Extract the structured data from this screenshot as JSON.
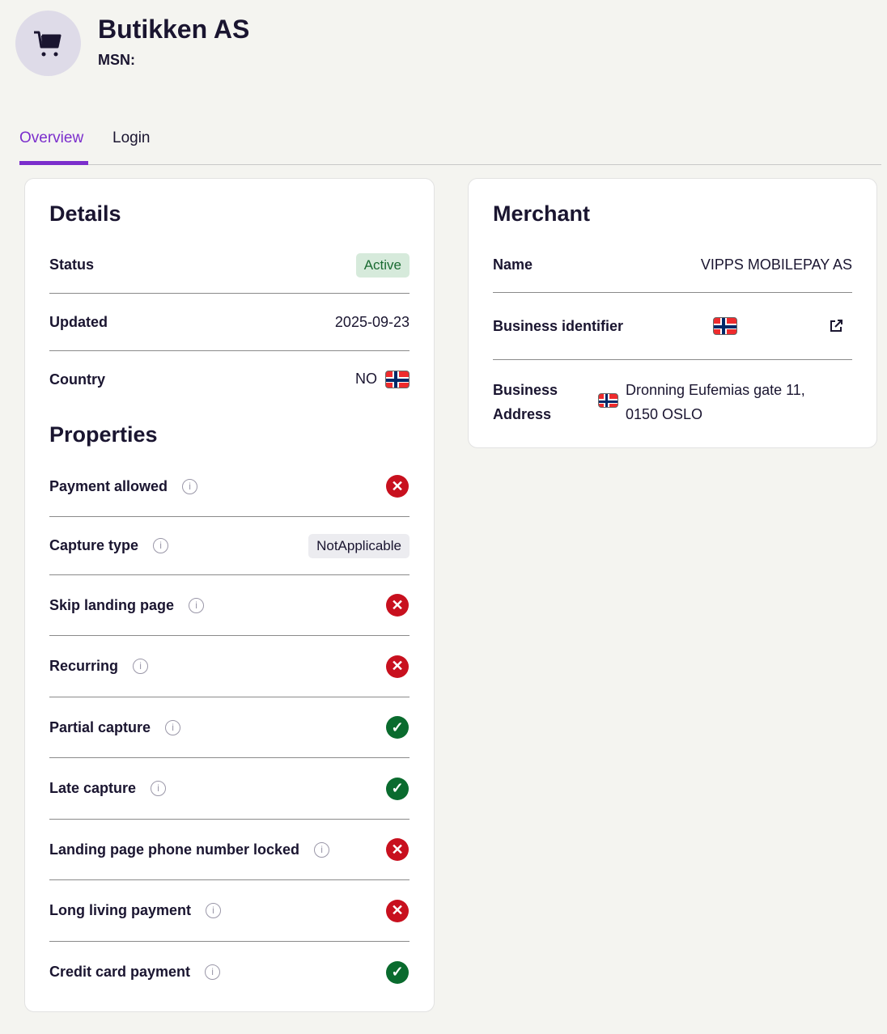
{
  "header": {
    "title": "Butikken AS",
    "msn_label": "MSN:",
    "avatar_icon": "shopping-cart-icon"
  },
  "tabs": [
    {
      "label": "Overview",
      "active": true
    },
    {
      "label": "Login",
      "active": false
    }
  ],
  "details": {
    "title": "Details",
    "status": {
      "label": "Status",
      "value": "Active"
    },
    "updated": {
      "label": "Updated",
      "value": "2025-09-23"
    },
    "country": {
      "label": "Country",
      "value": "NO"
    }
  },
  "properties": {
    "title": "Properties",
    "items": [
      {
        "label": "Payment allowed",
        "value": false
      },
      {
        "label": "Capture type",
        "value": "NotApplicable"
      },
      {
        "label": "Skip landing page",
        "value": false
      },
      {
        "label": "Recurring",
        "value": false
      },
      {
        "label": "Partial capture",
        "value": true
      },
      {
        "label": "Late capture",
        "value": true
      },
      {
        "label": "Landing page phone number locked",
        "value": false
      },
      {
        "label": "Long living payment",
        "value": false
      },
      {
        "label": "Credit card payment",
        "value": true
      }
    ]
  },
  "merchant": {
    "title": "Merchant",
    "name": {
      "label": "Name",
      "value": "VIPPS MOBILEPAY AS"
    },
    "business_identifier": {
      "label": "Business identifier"
    },
    "address": {
      "label_line1": "Business",
      "label_line2": "Address",
      "line1": "Dronning Eufemias gate 11,",
      "line2": "0150 OSLO"
    }
  },
  "colors": {
    "accent": "#7b2ecc",
    "error": "#c8101e",
    "success": "#0a6b2e",
    "active_badge_bg": "#d6eadb"
  }
}
